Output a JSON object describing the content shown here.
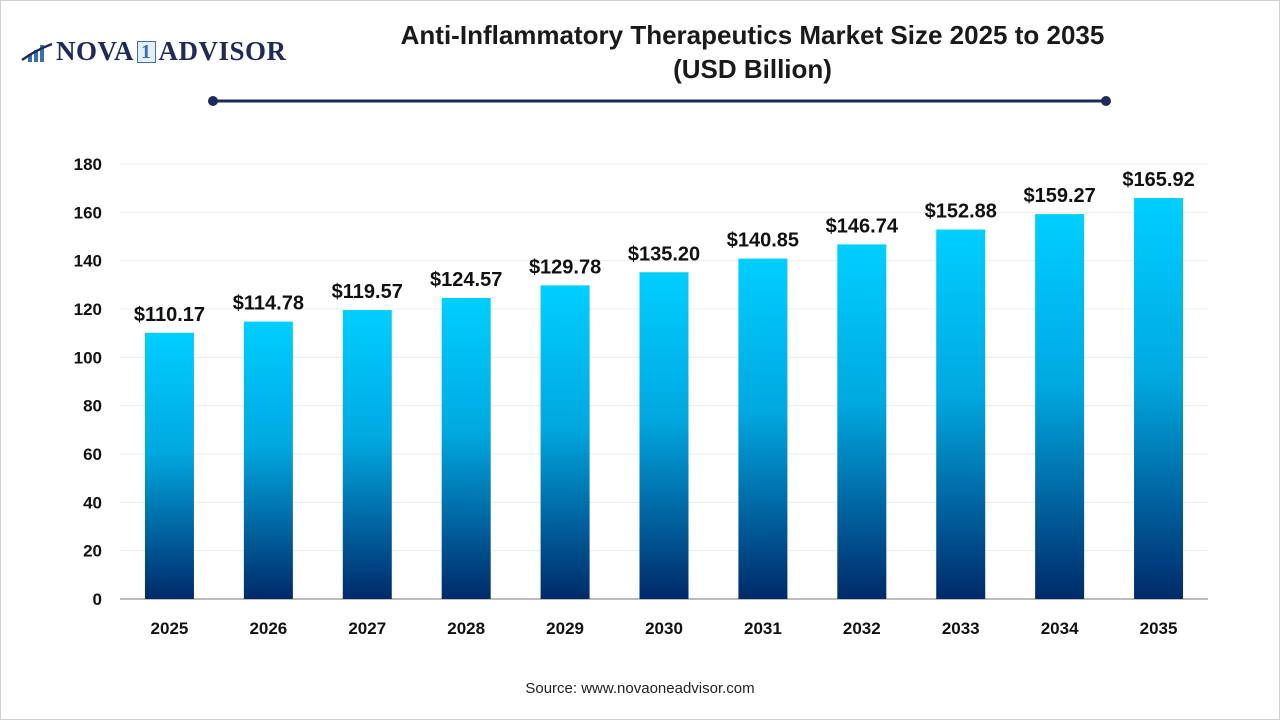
{
  "logo": {
    "text_left": "NOVA",
    "text_mid": "1",
    "text_right": "ADVISOR"
  },
  "title_line1": "Anti-Inflammatory Therapeutics Market Size 2025 to 2035",
  "title_line2": "(USD Billion)",
  "source": "Source: www.novaoneadvisor.com",
  "colors": {
    "bar_top": "#00cfff",
    "bar_bottom": "#002a6a",
    "title_rule": "#1e2a5a"
  },
  "chart_data": {
    "type": "bar",
    "title": "Anti-Inflammatory Therapeutics Market Size 2025 to 2035 (USD Billion)",
    "categories": [
      "2025",
      "2026",
      "2027",
      "2028",
      "2029",
      "2030",
      "2031",
      "2032",
      "2033",
      "2034",
      "2035"
    ],
    "values": [
      110.17,
      114.78,
      119.57,
      124.57,
      129.78,
      135.2,
      140.85,
      146.74,
      152.88,
      159.27,
      165.92
    ],
    "data_labels": [
      "$110.17",
      "$114.78",
      "$119.57",
      "$124.57",
      "$129.78",
      "$135.20",
      "$140.85",
      "$146.74",
      "$152.88",
      "$159.27",
      "$165.92"
    ],
    "ylim": [
      0,
      180
    ],
    "yticks": [
      0,
      20,
      40,
      60,
      80,
      100,
      120,
      140,
      160,
      180
    ],
    "grid": true,
    "xlabel": "",
    "ylabel": ""
  }
}
